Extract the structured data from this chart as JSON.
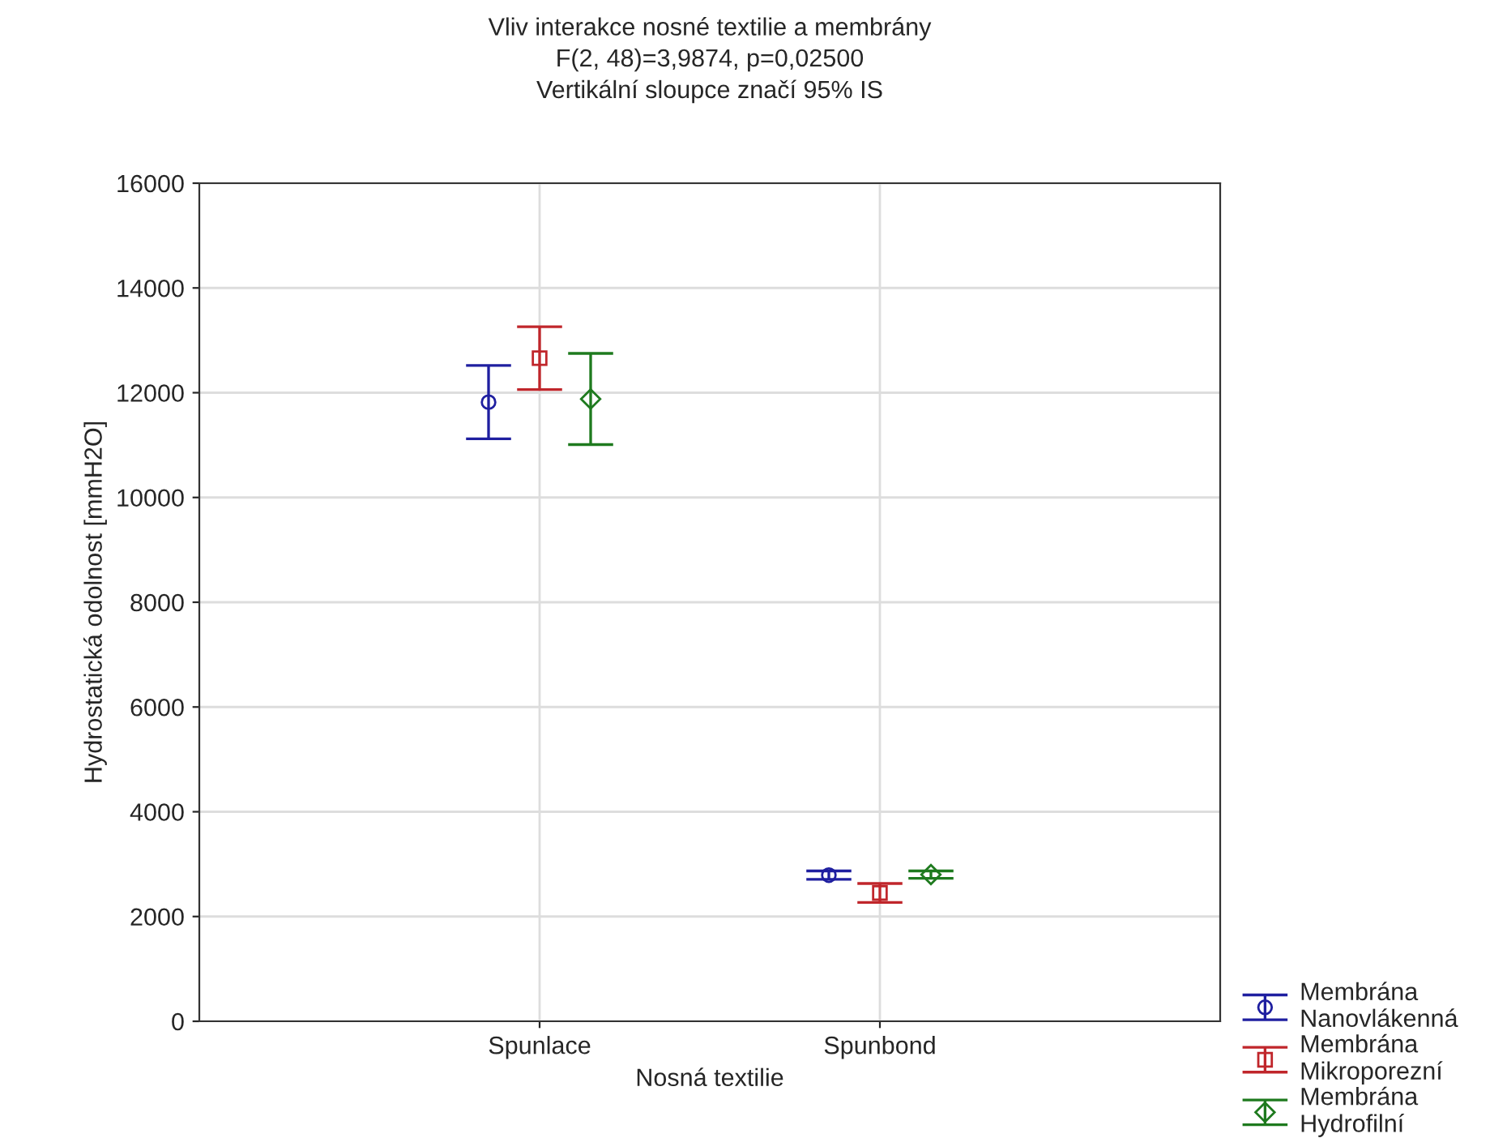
{
  "chart_data": {
    "type": "scatter",
    "title": "Vliv interakce nosné textilie a membrány",
    "subtitle": "F(2, 48)=3,9874, p=0,02500\nVertikální sloupce značí 95% IS",
    "xlabel": "Nosná textilie",
    "ylabel": "Hydrostatická odolnost [mmH2O]",
    "categories": [
      "Spunlace",
      "Spunbond"
    ],
    "series": [
      {
        "name": "Membrána\nNanovlákenná",
        "color": "#1f1fa0",
        "marker": "circle",
        "values": [
          11820,
          2790
        ],
        "errors": [
          700,
          80
        ]
      },
      {
        "name": "Membrána\nMikroporezní",
        "color": "#c0262b",
        "marker": "square",
        "values": [
          12660,
          2450
        ],
        "errors": [
          600,
          180
        ]
      },
      {
        "name": "Membrána\nHydrofilní",
        "color": "#1e7a1e",
        "marker": "diamond",
        "values": [
          11880,
          2800
        ],
        "errors": [
          870,
          70
        ]
      }
    ],
    "ylim": [
      0,
      16000
    ],
    "yticks": [
      0,
      2000,
      4000,
      6000,
      8000,
      10000,
      12000,
      14000,
      16000
    ],
    "grid": true,
    "legend": "bottom right"
  }
}
